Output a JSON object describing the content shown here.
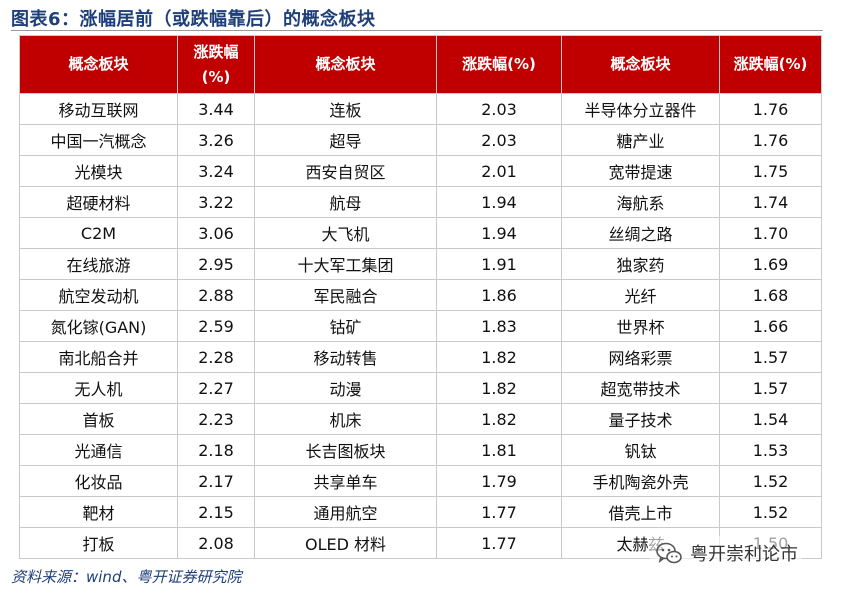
{
  "title": "图表6：涨幅居前（或跌幅靠后）的概念板块",
  "table": {
    "headers": [
      "概念板块",
      "涨跌幅\n(%)",
      "概念板块",
      "涨跌幅(%)",
      "概念板块",
      "涨跌幅(%)"
    ],
    "rows": [
      [
        "移动互联网",
        "3.44",
        "连板",
        "2.03",
        "半导体分立器件",
        "1.76"
      ],
      [
        "中国一汽概念",
        "3.26",
        "超导",
        "2.03",
        "糖产业",
        "1.76"
      ],
      [
        "光模块",
        "3.24",
        "西安自贸区",
        "2.01",
        "宽带提速",
        "1.75"
      ],
      [
        "超硬材料",
        "3.22",
        "航母",
        "1.94",
        "海航系",
        "1.74"
      ],
      [
        "C2M",
        "3.06",
        "大飞机",
        "1.94",
        "丝绸之路",
        "1.70"
      ],
      [
        "在线旅游",
        "2.95",
        "十大军工集团",
        "1.91",
        "独家药",
        "1.69"
      ],
      [
        "航空发动机",
        "2.88",
        "军民融合",
        "1.86",
        "光纤",
        "1.68"
      ],
      [
        "氮化镓(GAN)",
        "2.59",
        "钴矿",
        "1.83",
        "世界杯",
        "1.66"
      ],
      [
        "南北船合并",
        "2.28",
        "移动转售",
        "1.82",
        "网络彩票",
        "1.57"
      ],
      [
        "无人机",
        "2.27",
        "动漫",
        "1.82",
        "超宽带技术",
        "1.57"
      ],
      [
        "首板",
        "2.23",
        "机床",
        "1.82",
        "量子技术",
        "1.54"
      ],
      [
        "光通信",
        "2.18",
        "长吉图板块",
        "1.81",
        "钒钛",
        "1.53"
      ],
      [
        "化妆品",
        "2.17",
        "共享单车",
        "1.79",
        "手机陶瓷外壳",
        "1.52"
      ],
      [
        "靶材",
        "2.15",
        "通用航空",
        "1.77",
        "借壳上市",
        "1.52"
      ],
      [
        "打板",
        "2.08",
        "OLED 材料",
        "1.77",
        "太赫兹",
        "1.50"
      ]
    ]
  },
  "source": "资料来源：wind、粤开证券研究院",
  "watermark": {
    "text": "粤开崇利论市",
    "icon": "wechat-logo-icon"
  },
  "colors": {
    "header_bg": "#c00000",
    "title": "#1f3f7a",
    "border": "#c9c9c9"
  }
}
